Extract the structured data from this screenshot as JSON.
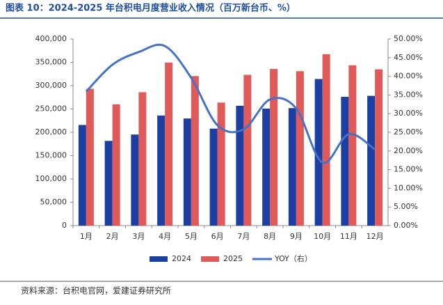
{
  "chart_data": {
    "type": "bar-line",
    "title": "图表 10：2024-2025 年台积电月度营业收入情况（百万新台币、%）",
    "source": "资料来源：台积电官网，爱建证券研究所",
    "categories": [
      "1月",
      "2月",
      "3月",
      "4月",
      "5月",
      "6月",
      "7月",
      "8月",
      "9月",
      "10月",
      "11月",
      "12月"
    ],
    "series": [
      {
        "name": "2024",
        "color": "#1c3fa3",
        "values": [
          215785,
          181648,
          195211,
          236021,
          229620,
          207869,
          256953,
          250866,
          251873,
          314240,
          276058,
          278163
        ]
      },
      {
        "name": "2025",
        "color": "#e05a5a",
        "values": [
          293288,
          260009,
          285957,
          349567,
          320516,
          263709,
          323166,
          335772,
          330980,
          367473,
          343614,
          335003
        ]
      },
      {
        "name": "YOY（右）",
        "color": "#4472c4",
        "axis": "y2",
        "values": [
          35.9,
          43.1,
          46.5,
          48.1,
          39.6,
          26.9,
          25.8,
          33.8,
          31.4,
          16.9,
          24.5,
          20.4
        ]
      }
    ],
    "ylim": [
      0,
      400000
    ],
    "yticks": [
      {
        "value": 0,
        "label": "0"
      },
      {
        "value": 50000,
        "label": "50,000"
      },
      {
        "value": 100000,
        "label": "100,000"
      },
      {
        "value": 150000,
        "label": "150,000"
      },
      {
        "value": 200000,
        "label": "200,000"
      },
      {
        "value": 250000,
        "label": "250,000"
      },
      {
        "value": 300000,
        "label": "300,000"
      },
      {
        "value": 350000,
        "label": "350,000"
      },
      {
        "value": 400000,
        "label": "400,000"
      }
    ],
    "y2lim": [
      0,
      50
    ],
    "y2ticks": [
      {
        "value": 0,
        "label": "0.00%"
      },
      {
        "value": 5,
        "label": "5.00%"
      },
      {
        "value": 10,
        "label": "10.00%"
      },
      {
        "value": 15,
        "label": "15.00%"
      },
      {
        "value": 20,
        "label": "20.00%"
      },
      {
        "value": 25,
        "label": "25.00%"
      },
      {
        "value": 30,
        "label": "30.00%"
      },
      {
        "value": 35,
        "label": "35.00%"
      },
      {
        "value": 40,
        "label": "40.00%"
      },
      {
        "value": 45,
        "label": "45.00%"
      },
      {
        "value": 50,
        "label": "50.00%"
      }
    ],
    "legend": "bottom"
  }
}
